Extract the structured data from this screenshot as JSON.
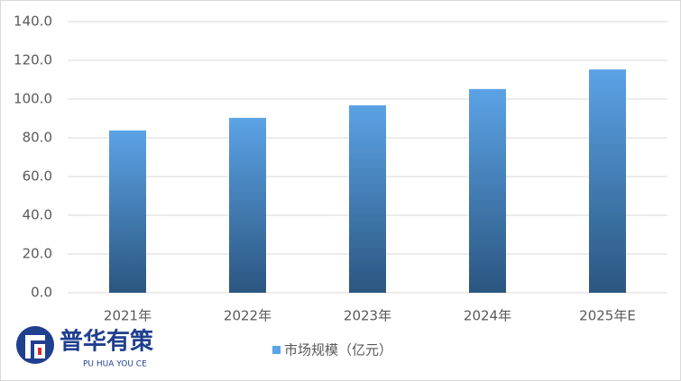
{
  "chart_data": {
    "type": "bar",
    "categories": [
      "2021年",
      "2022年",
      "2023年",
      "2024年",
      "2025年E"
    ],
    "series": [
      {
        "name": "市场规模（亿元）",
        "color": [
          "#5ba3e6",
          "#2b5680"
        ],
        "values": [
          83.8,
          90.3,
          96.8,
          105.2,
          115.3
        ]
      }
    ],
    "ylim": [
      0,
      140
    ],
    "yticks": [
      {
        "value": 0,
        "label": "0.0"
      },
      {
        "value": 20,
        "label": "20.0"
      },
      {
        "value": 40,
        "label": "40.0"
      },
      {
        "value": 60,
        "label": "60.0"
      },
      {
        "value": 80,
        "label": "80.0"
      },
      {
        "value": 100,
        "label": "100.0"
      },
      {
        "value": 120,
        "label": "120.0"
      },
      {
        "value": 140,
        "label": "140.0"
      }
    ],
    "grid": true,
    "legend": "bottom"
  },
  "logo": {
    "name": "普华有策",
    "subtitle": "PU HUA YOU CE"
  }
}
